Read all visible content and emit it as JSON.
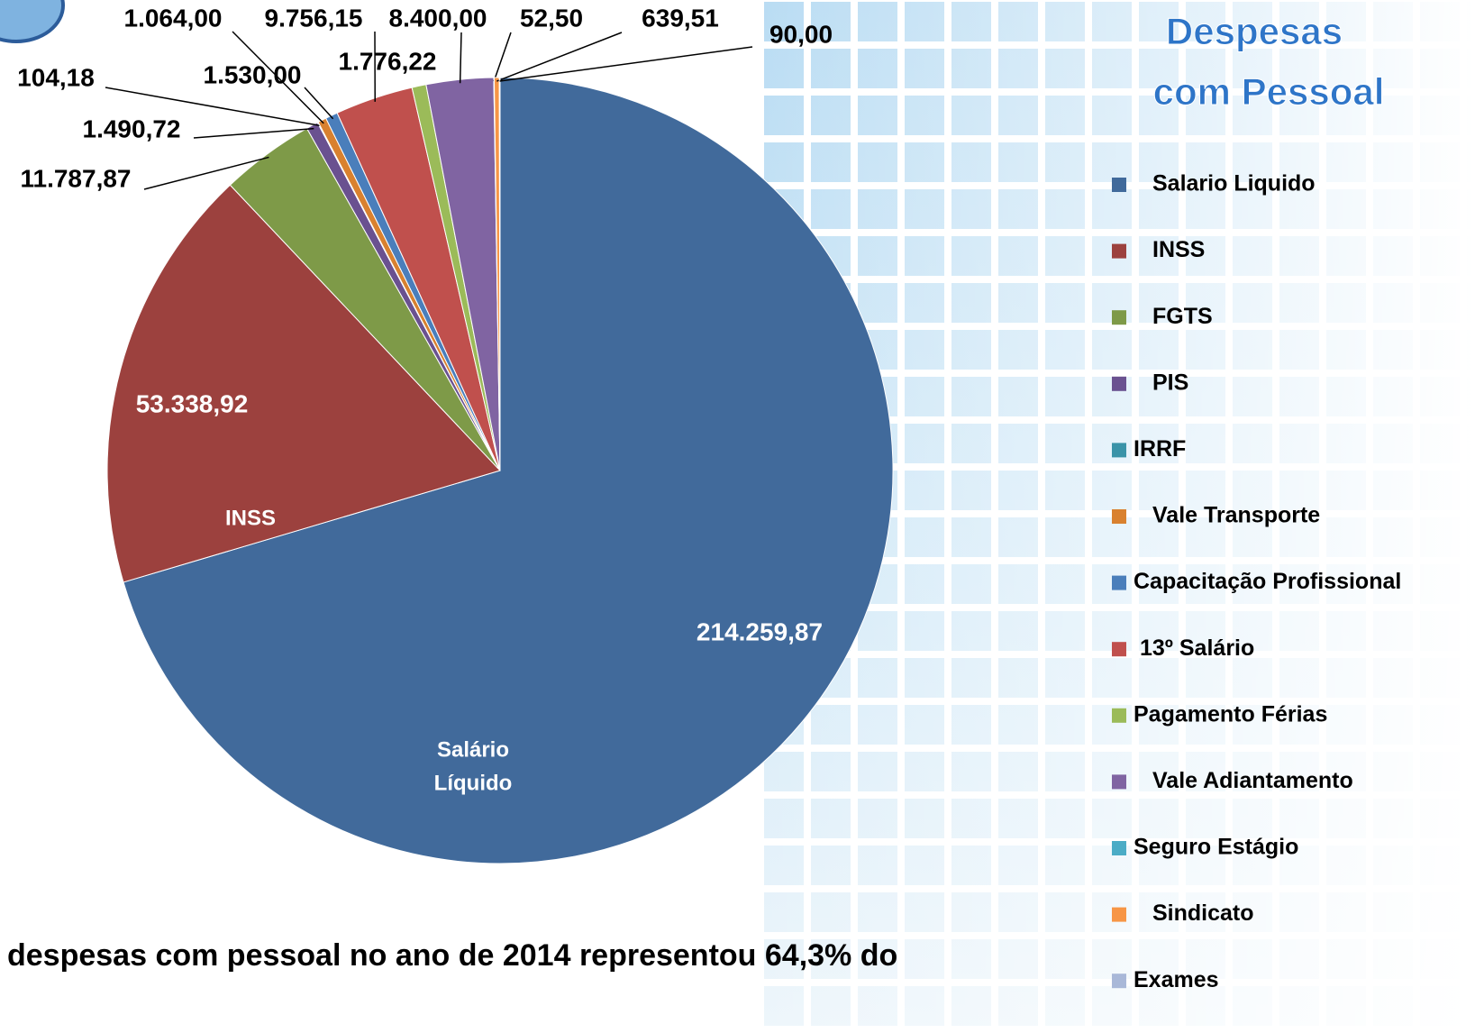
{
  "chart_data": {
    "type": "pie",
    "title": [
      "Despesas",
      "com Pessoal"
    ],
    "categories": [
      "Salario Liquido",
      "INSS",
      "FGTS",
      "PIS",
      "IRRF",
      "Vale Transporte",
      "Capacitação Profissional",
      "13º Salário",
      "Pagamento Férias",
      "Vale Adiantamento",
      "Seguro Estágio",
      "Sindicato",
      "Exames"
    ],
    "values": [
      214259.87,
      53338.92,
      11787.87,
      1490.72,
      104.18,
      1064.0,
      1530.0,
      9756.15,
      1776.22,
      8400.0,
      52.5,
      639.51,
      90.0
    ],
    "value_labels": [
      "214.259,87",
      "53.338,92",
      "11.787,87",
      "1.490,72",
      "104,18",
      "1.064,00",
      "1.530,00",
      "9.756,15",
      "1.776,22",
      "8.400,00",
      "52,50",
      "639,51",
      "90,00"
    ],
    "colors": [
      "#416a9b",
      "#9c413e",
      "#7e9a48",
      "#6a5190",
      "#3a93a8",
      "#d9812f",
      "#4a7ebb",
      "#c0504d",
      "#9bbb59",
      "#8064a2",
      "#4bacc6",
      "#f79646",
      "#a9b8d8"
    ],
    "slice_labels": [
      [
        "Salário",
        "Líquido"
      ],
      [
        "INSS"
      ]
    ],
    "legend": "right",
    "footnote": "despesas com pessoal no ano de 2014 representou 64,3% do"
  }
}
